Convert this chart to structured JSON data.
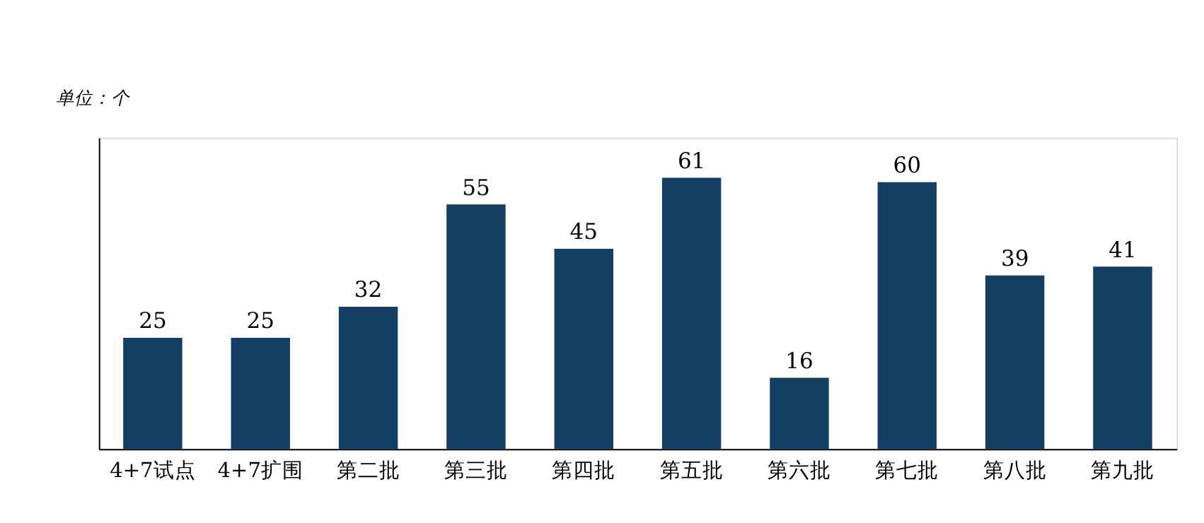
{
  "chart_data": {
    "type": "bar",
    "ylabel": "单位：个",
    "categories": [
      "4+7试点",
      "4+7扩围",
      "第二批",
      "第三批",
      "第四批",
      "第五批",
      "第六批",
      "第七批",
      "第八批",
      "第九批"
    ],
    "values": [
      25,
      25,
      32,
      55,
      45,
      61,
      16,
      60,
      39,
      41
    ],
    "color": "#143f63",
    "ylim": [
      0,
      70
    ],
    "data_labels": true,
    "grid": false
  }
}
